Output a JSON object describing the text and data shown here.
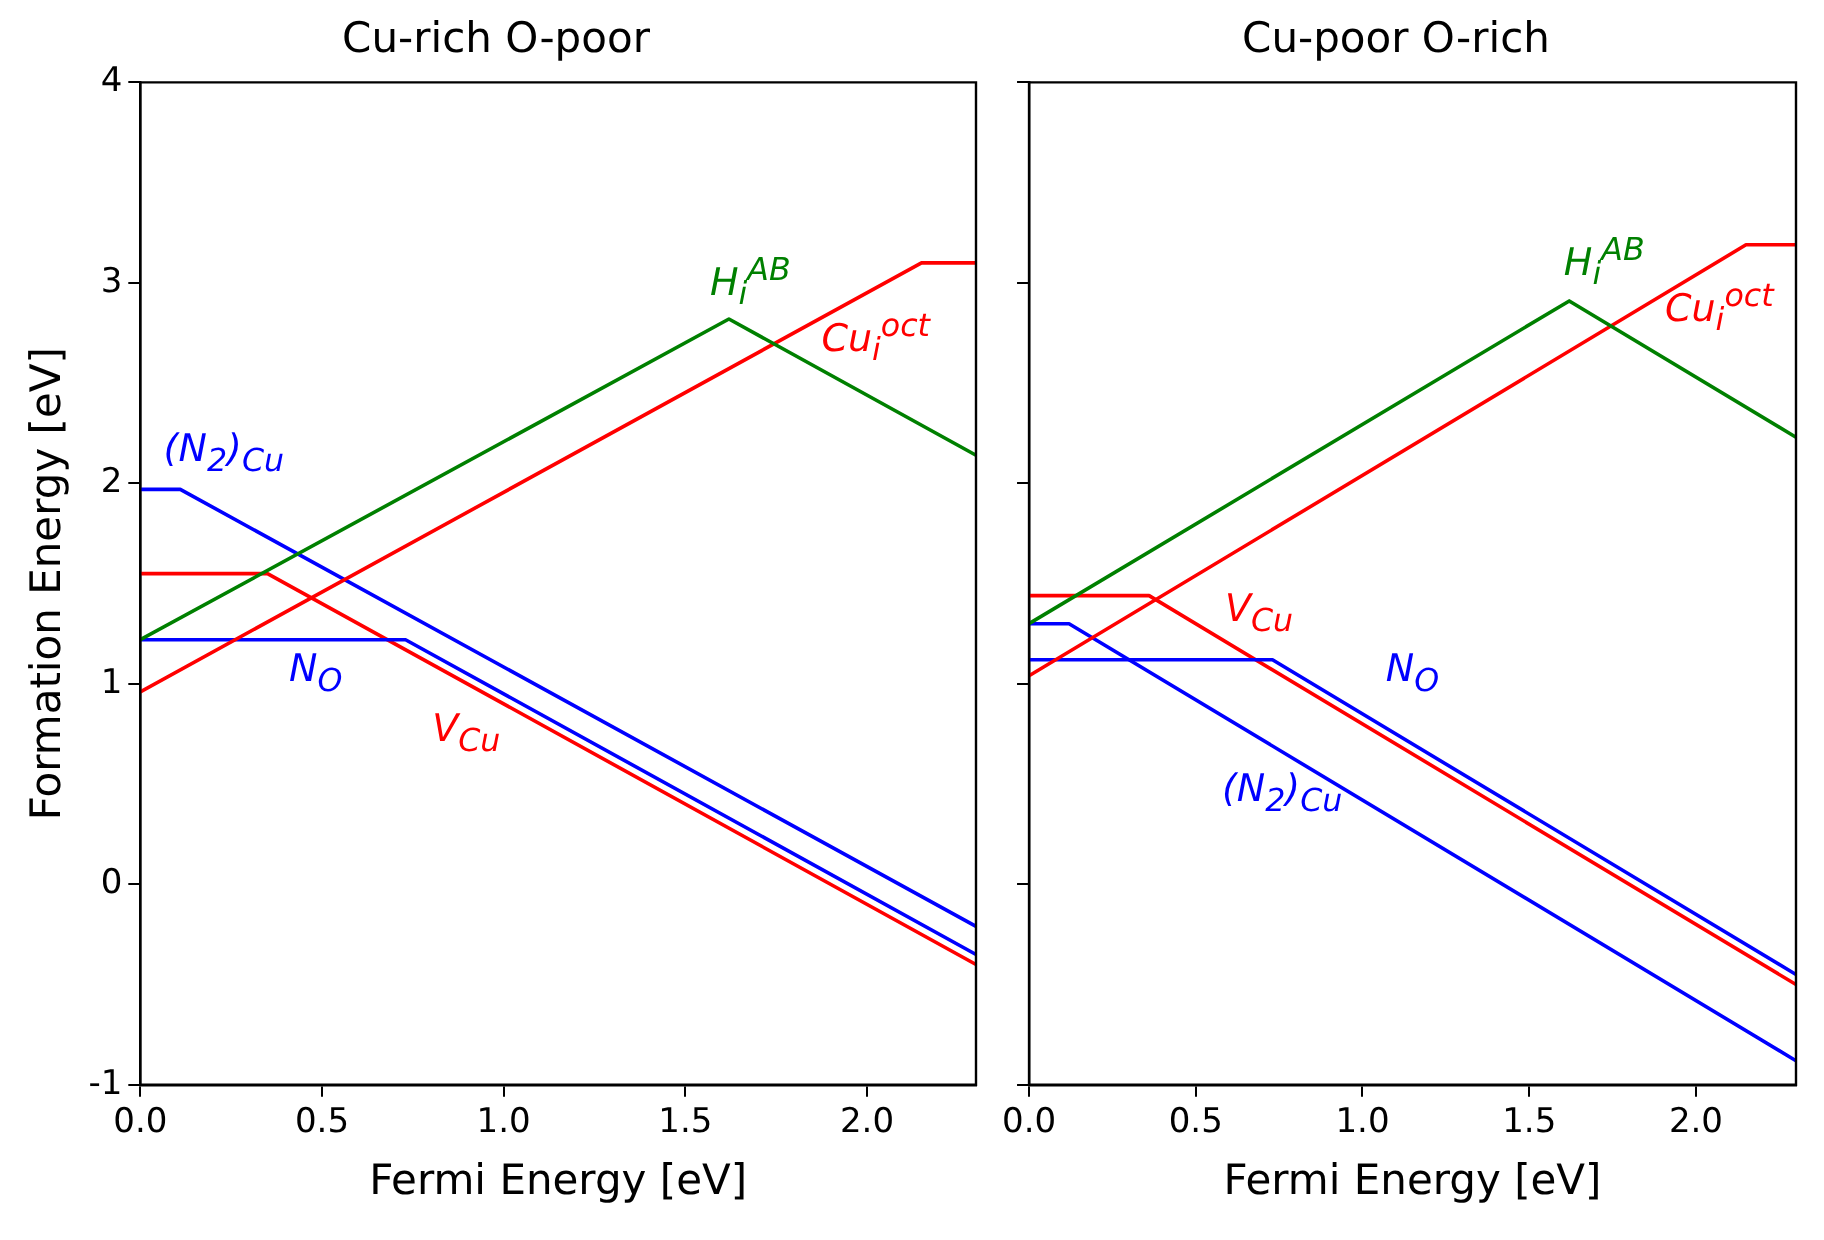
{
  "chart_data": [
    {
      "type": "line",
      "title": "Cu-rich O-poor",
      "xlabel": "Fermi Energy [eV]",
      "ylabel": "Formation Energy [eV]",
      "xlim": [
        0,
        2.3
      ],
      "xticks": [
        {
          "value": 0,
          "label": "0.0"
        },
        {
          "value": 0.5,
          "label": "0.5"
        },
        {
          "value": 1,
          "label": "1.0"
        },
        {
          "value": 1.5,
          "label": "1.5"
        },
        {
          "value": 2,
          "label": "2.0"
        }
      ],
      "ylim": [
        -1,
        4
      ],
      "yticks": [
        -1,
        0,
        1,
        2,
        3,
        4
      ],
      "grid": false,
      "legend": false,
      "marker": "none",
      "line_style": "solid",
      "series": [
        {
          "name": "H$_{i}$$^{AB}$",
          "color": "#008000",
          "x": [
            0,
            1.62,
            2.3
          ],
          "values": [
            1.22,
            2.82,
            2.14
          ]
        },
        {
          "name": "Cu$_{i}$$^{oct}$",
          "color": "#ff0000",
          "x": [
            0,
            2.15,
            2.3
          ],
          "values": [
            0.96,
            3.1,
            3.1
          ]
        },
        {
          "name": "(N$_{2}$)$_{Cu}$",
          "color": "#0000ff",
          "x": [
            0,
            0.11,
            2.3
          ],
          "values": [
            1.97,
            1.97,
            -0.21
          ]
        },
        {
          "name": "N$_{O}$",
          "color": "#0000ff",
          "x": [
            0,
            0.73,
            2.3
          ],
          "values": [
            1.22,
            1.22,
            -0.35
          ]
        },
        {
          "name": "V$_{Cu}$",
          "color": "#ff0000",
          "x": [
            0,
            0.35,
            2.3
          ],
          "values": [
            1.55,
            1.55,
            -0.4
          ]
        }
      ]
    },
    {
      "type": "line",
      "title": "Cu-poor O-rich",
      "xlabel": "Fermi Energy [eV]",
      "xlim": [
        0,
        2.3
      ],
      "xticks": [
        {
          "value": 0,
          "label": "0.0"
        },
        {
          "value": 0.5,
          "label": "0.5"
        },
        {
          "value": 1,
          "label": "1.0"
        },
        {
          "value": 1.5,
          "label": "1.5"
        },
        {
          "value": 2,
          "label": "2.0"
        }
      ],
      "ylim": [
        -1,
        4
      ],
      "yticks": [
        -1,
        0,
        1,
        2,
        3,
        4
      ],
      "tick_labels": "x",
      "grid": false,
      "legend": false,
      "marker": "none",
      "line_style": "solid",
      "series": [
        {
          "name": "H$_{i}$$^{AB}$",
          "color": "#008000",
          "x": [
            0,
            1.62,
            2.3
          ],
          "values": [
            1.3,
            2.91,
            2.23
          ]
        },
        {
          "name": "Cu$_{i}$$^{oct}$",
          "color": "#ff0000",
          "x": [
            0,
            2.15,
            2.3
          ],
          "values": [
            1.04,
            3.19,
            3.19
          ]
        },
        {
          "name": "(N$_{2}$)$_{Cu}$",
          "color": "#0000ff",
          "x": [
            0,
            0.12,
            2.3
          ],
          "values": [
            1.3,
            1.3,
            -0.88
          ]
        },
        {
          "name": "N$_{O}$",
          "color": "#0000ff",
          "x": [
            0,
            0.73,
            2.3
          ],
          "values": [
            1.12,
            1.12,
            -0.45
          ]
        },
        {
          "name": "V$_{Cu}$",
          "color": "#ff0000",
          "x": [
            0,
            0.36,
            2.3
          ],
          "values": [
            1.44,
            1.44,
            -0.5
          ]
        }
      ]
    }
  ]
}
